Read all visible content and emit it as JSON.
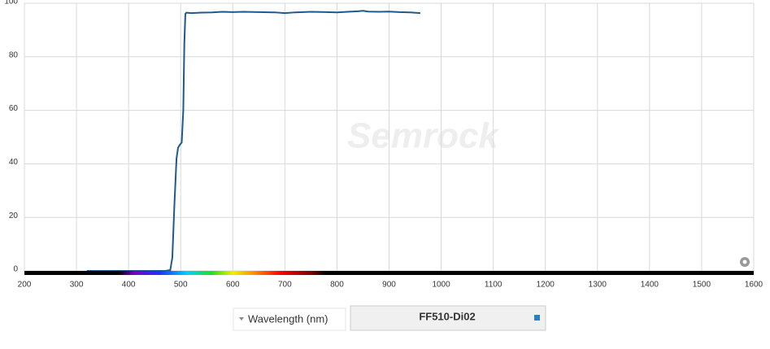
{
  "chart_data": {
    "type": "line",
    "watermark": "Semrock",
    "x_label": "Wavelength (nm)",
    "x": [
      320,
      400,
      470,
      480,
      484,
      488,
      492,
      495,
      498,
      502,
      505,
      507,
      509,
      511,
      520,
      540,
      560,
      580,
      600,
      620,
      650,
      680,
      700,
      720,
      750,
      780,
      800,
      820,
      840,
      850,
      860,
      880,
      900,
      920,
      940,
      960
    ],
    "series": [
      {
        "name": "FF510-Di02",
        "color": "#1f5a8c",
        "values": [
          0,
          0,
          0,
          0.3,
          5,
          25,
          42,
          46,
          47,
          48,
          60,
          85,
          96,
          96.5,
          96.3,
          96.5,
          96.6,
          96.8,
          96.7,
          96.8,
          96.7,
          96.6,
          96.3,
          96.6,
          96.8,
          96.7,
          96.6,
          96.8,
          97,
          97.2,
          96.9,
          96.8,
          96.9,
          96.7,
          96.6,
          96.3
        ]
      }
    ],
    "xlim": [
      200,
      1600
    ],
    "ylim": [
      0,
      100
    ],
    "xticks": [
      200,
      300,
      400,
      500,
      600,
      700,
      800,
      900,
      1000,
      1100,
      1200,
      1300,
      1400,
      1500,
      1600
    ],
    "yticks": [
      0,
      20,
      40,
      60,
      80,
      100
    ],
    "grid": true
  }
}
